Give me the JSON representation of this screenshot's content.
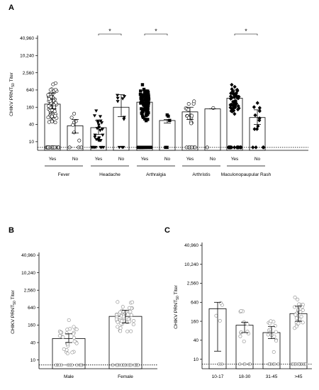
{
  "chart_data": [
    {
      "id": "A",
      "type": "bar",
      "panel_label": "A",
      "ylabel_main": "CHIKV PRNT",
      "ylabel_sub": "50",
      "ylabel_tail": " Titer",
      "yscale": "log2",
      "ylim": [
        5,
        40960
      ],
      "yticks": [
        10,
        40,
        160,
        640,
        2560,
        10240,
        40960
      ],
      "ytick_labels": [
        "10",
        "40",
        "160",
        "640",
        "2,560",
        "10,240",
        "40,960"
      ],
      "limit_of_detection": 10,
      "groups": [
        {
          "name": "Fever",
          "bars": [
            {
              "label": "Yes",
              "value": 205,
              "err_low": 140,
              "err_high": 500,
              "marker": "circle",
              "n": 110
            },
            {
              "label": "No",
              "value": 36,
              "err_low": 20,
              "err_high": 60,
              "marker": "circle",
              "n": 10
            }
          ]
        },
        {
          "name": "Headache",
          "sig": "*",
          "bars": [
            {
              "label": "Yes",
              "value": 31,
              "err_low": 18,
              "err_high": 55,
              "marker": "triangle",
              "n": 30
            },
            {
              "label": "No",
              "value": 160,
              "err_low": 75,
              "err_high": 440,
              "marker": "triangle",
              "n": 10
            }
          ]
        },
        {
          "name": "Arthralgia",
          "sig": "*",
          "bars": [
            {
              "label": "Yes",
              "value": 240,
              "err_low": 150,
              "err_high": 600,
              "marker": "square",
              "n": 110
            },
            {
              "label": "No",
              "value": 55,
              "err_low": 45,
              "err_high": 60,
              "marker": "square",
              "n": 5
            }
          ]
        },
        {
          "name": "Arthristis",
          "bars": [
            {
              "label": "Yes",
              "value": 110,
              "err_low": 60,
              "err_high": 160,
              "marker": "circle",
              "n": 22
            },
            {
              "label": "No",
              "value": 140,
              "err_low": 140,
              "err_high": 140,
              "marker": "circle",
              "n": 2
            }
          ]
        },
        {
          "name": "Maculonopaupular Rash",
          "sig": "*",
          "bars": [
            {
              "label": "Yes",
              "value": 330,
              "err_low": 180,
              "err_high": 640,
              "marker": "diamond",
              "n": 70
            },
            {
              "label": "No",
              "value": 70,
              "err_low": 40,
              "err_high": 130,
              "marker": "diamond",
              "n": 14
            }
          ]
        }
      ]
    },
    {
      "id": "B",
      "type": "bar",
      "panel_label": "B",
      "ylabel_main": "CHIKV PRNT",
      "ylabel_sub": "50",
      "ylabel_tail": "  Titer",
      "yscale": "log2",
      "ylim": [
        5,
        40960
      ],
      "yticks": [
        10,
        40,
        160,
        640,
        2560,
        10240,
        40960
      ],
      "ytick_labels": [
        "10",
        "40",
        "160",
        "640",
        "2,560",
        "10,240",
        "40,960"
      ],
      "limit_of_detection": 10,
      "categories": [
        "Male",
        "Female"
      ],
      "values": [
        55,
        320
      ],
      "err_low": [
        40,
        190
      ],
      "err_high": [
        80,
        520
      ],
      "n": [
        40,
        70
      ]
    },
    {
      "id": "C",
      "type": "bar",
      "panel_label": "C",
      "ylabel_main": "CHIKV PRNT",
      "ylabel_sub": "50",
      "ylabel_tail": "  Titer",
      "yscale": "log2",
      "ylim": [
        5,
        40960
      ],
      "yticks": [
        10,
        40,
        160,
        640,
        2560,
        10240,
        40960
      ],
      "ytick_labels": [
        "10",
        "40",
        "160",
        "640",
        "2,560",
        "10,240",
        "40,960"
      ],
      "limit_of_detection": 10,
      "categories": [
        "10-17",
        "18-30",
        "31-45",
        ">45"
      ],
      "values": [
        400,
        120,
        70,
        280
      ],
      "err_low": [
        18,
        70,
        45,
        160
      ],
      "err_high": [
        640,
        150,
        110,
        480
      ],
      "n": [
        6,
        16,
        20,
        45
      ]
    }
  ]
}
